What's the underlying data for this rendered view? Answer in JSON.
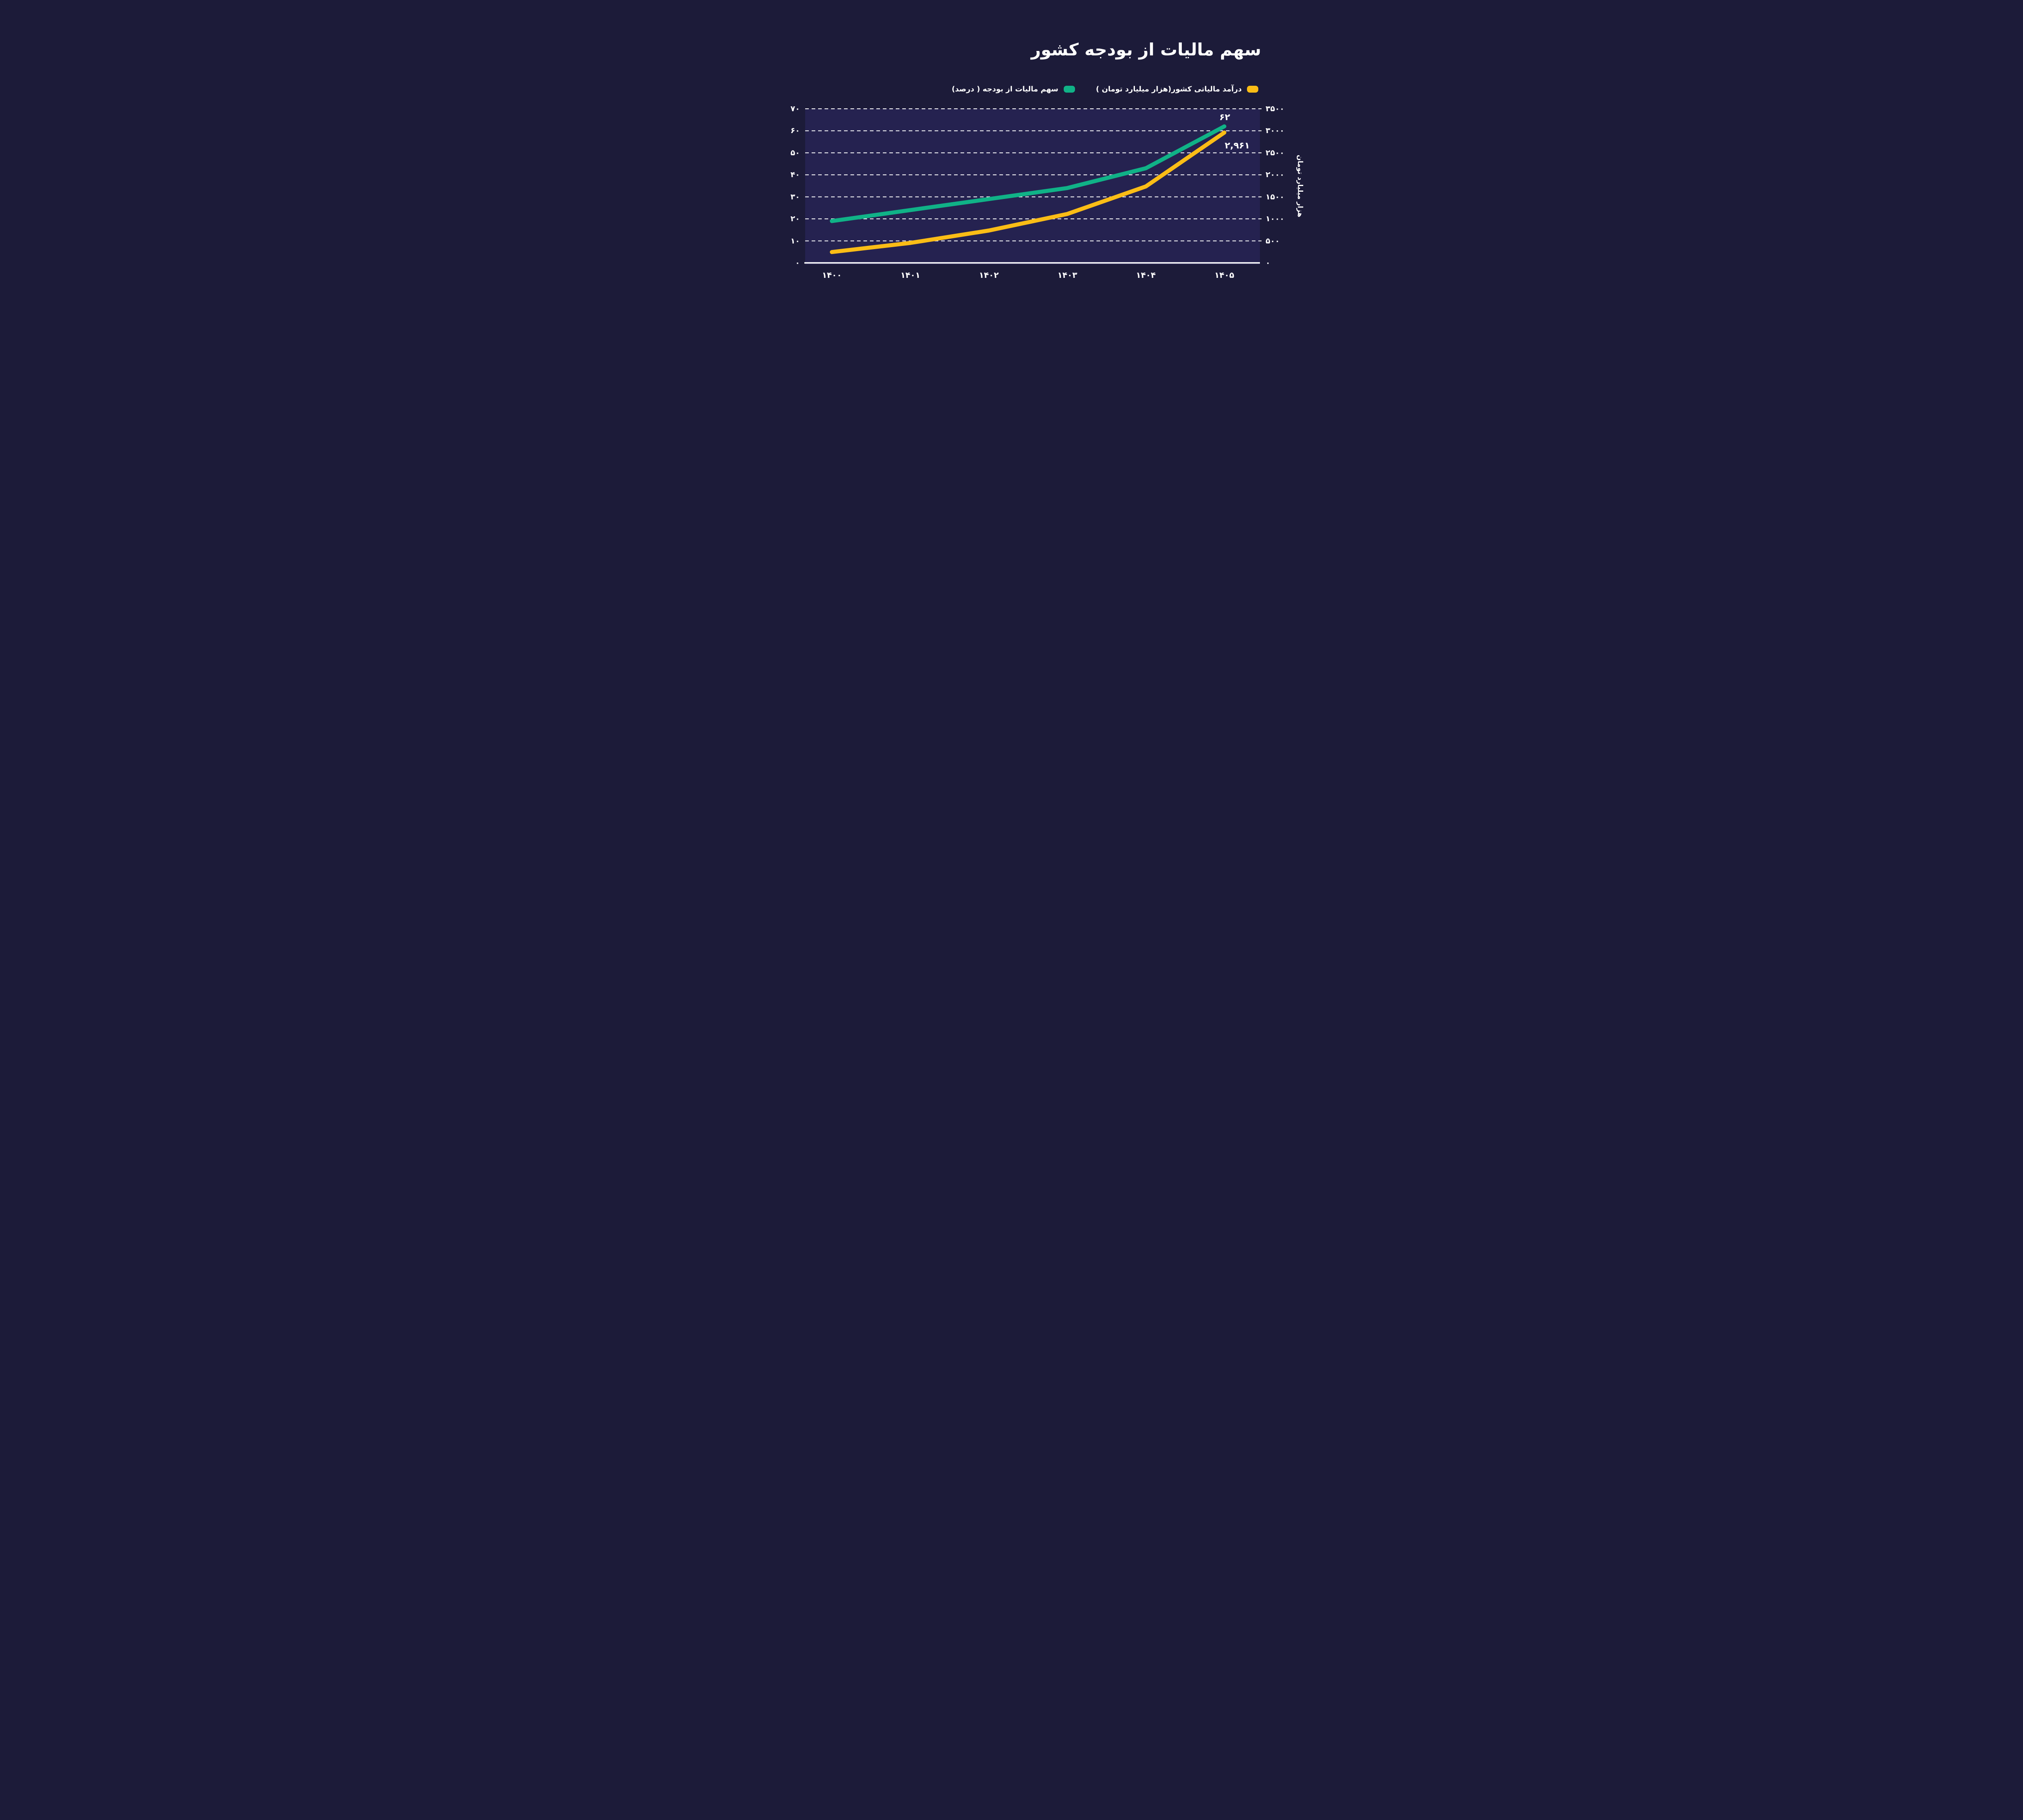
{
  "title": "سهم مالیات از بودجه کشور",
  "colors": {
    "background": "#1C1B39",
    "plot_background": "#252250",
    "text": "#FFFFFF",
    "grid": "#FFFFFF",
    "yellow": "#FBBD16",
    "green": "#10B287"
  },
  "legend": [
    {
      "id": "tax_revenue",
      "label": "درآمد مالیاتی کشور(هزار میلیارد تومان )",
      "color": "#FBBD16"
    },
    {
      "id": "tax_share",
      "label": "سهم مالیات از بودجه ( درصد)",
      "color": "#10B287"
    }
  ],
  "chart_data": {
    "type": "line",
    "title": "سهم مالیات از بودجه کشور",
    "categories": [
      "۱۴۰۰",
      "۱۴۰۱",
      "۱۴۰۲",
      "۱۴۰۳",
      "۱۴۰۴",
      "۱۴۰۵"
    ],
    "categories_numeric": [
      1400,
      1401,
      1402,
      1403,
      1404,
      1405
    ],
    "series": [
      {
        "id": "tax_revenue",
        "name": "درآمد مالیاتی کشور(هزار میلیارد تومان )",
        "axis": "right",
        "color": "#FBBD16",
        "values": [
          246,
          454,
          735,
          1112,
          1736,
          2961
        ]
      },
      {
        "id": "tax_share",
        "name": "سهم مالیات از بودجه ( درصد)",
        "axis": "left",
        "color": "#10B287",
        "values": [
          19,
          24,
          29,
          34,
          43,
          62
        ]
      }
    ],
    "left_axis": {
      "range": [
        0,
        70
      ],
      "tick_values": [
        70,
        60,
        50,
        40,
        30,
        20,
        10,
        0
      ],
      "tick_labels": [
        "۷۰",
        "۶۰",
        "۵۰",
        "۴۰",
        "۳۰",
        "۲۰",
        "۱۰",
        "۰"
      ]
    },
    "right_axis": {
      "title": "هزار میلیارد تومان",
      "range": [
        0,
        3500
      ],
      "tick_values": [
        3500,
        3000,
        2500,
        2000,
        1500,
        1000,
        500,
        0
      ],
      "tick_labels": [
        "۳۵۰۰",
        "۳۰۰۰",
        "۲۵۰۰",
        "۲۰۰۰",
        "۱۵۰۰",
        "۱۰۰۰",
        "۵۰۰",
        "۰"
      ]
    },
    "annotations": {
      "tax_share": "۶۲",
      "tax_revenue": "۲,۹۶۱"
    },
    "grid": "horizontal dashed",
    "legend_position": "top"
  }
}
